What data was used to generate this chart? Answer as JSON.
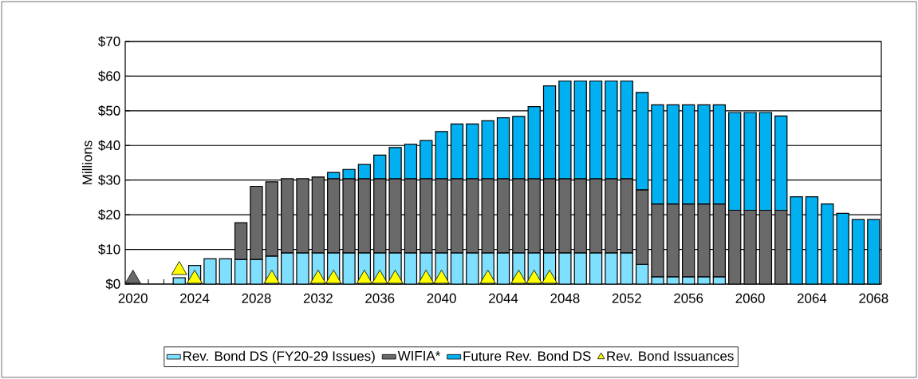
{
  "chart_data": {
    "type": "bar",
    "stacked": true,
    "ylabel": "Millions",
    "categories": [
      "2020",
      null,
      null,
      null,
      "2024",
      null,
      null,
      null,
      "2028",
      null,
      null,
      null,
      "2032",
      null,
      null,
      null,
      "2036",
      null,
      null,
      null,
      "2040",
      null,
      null,
      null,
      "2044",
      null,
      null,
      null,
      "2048",
      null,
      null,
      null,
      "2052",
      null,
      null,
      null,
      "2056",
      null,
      null,
      null,
      "2060",
      null,
      null,
      null,
      "2064",
      null,
      null,
      null,
      "2068"
    ],
    "ylim": [
      0,
      70
    ],
    "yticks": [
      {
        "value": 0,
        "label": "$0"
      },
      {
        "value": 10,
        "label": "$10"
      },
      {
        "value": 20,
        "label": "$20"
      },
      {
        "value": 30,
        "label": "$30"
      },
      {
        "value": 40,
        "label": "$40"
      },
      {
        "value": 50,
        "label": "$50"
      },
      {
        "value": 60,
        "label": "$60"
      },
      {
        "value": 70,
        "label": "$70"
      }
    ],
    "grid": "y",
    "legend": "bottom",
    "marker": "triangle",
    "series": [
      {
        "name": "Rev. Bond DS (FY20-29 Issues)",
        "color": "#7fdfff",
        "values": [
          null,
          null,
          null,
          1.8,
          5.4,
          7.3,
          7.3,
          7.1,
          7.1,
          8.1,
          9.0,
          9.0,
          9.0,
          9.0,
          9.0,
          9.0,
          9.0,
          9.0,
          9.0,
          9.0,
          9.0,
          9.0,
          9.0,
          9.0,
          9.0,
          9.0,
          9.0,
          9.0,
          9.0,
          9.0,
          9.0,
          9.0,
          9.0,
          5.7,
          2.1,
          2.1,
          2.1,
          2.1,
          2.1,
          null,
          null,
          null,
          null,
          null,
          null,
          null,
          null,
          null,
          null
        ]
      },
      {
        "name": "WIFIA*",
        "color": "#696969",
        "values": [
          null,
          null,
          null,
          null,
          null,
          null,
          null,
          10.6,
          21.1,
          21.4,
          21.4,
          21.4,
          21.9,
          21.4,
          21.4,
          21.4,
          21.4,
          21.4,
          21.4,
          21.4,
          21.4,
          21.4,
          21.4,
          21.4,
          21.4,
          21.4,
          21.4,
          21.4,
          21.4,
          21.4,
          21.4,
          21.4,
          21.4,
          21.5,
          21.0,
          21.0,
          21.0,
          21.0,
          21.0,
          21.3,
          21.3,
          21.3,
          21.3,
          null,
          null,
          null,
          null,
          null,
          null
        ]
      },
      {
        "name": "Future Rev. Bond DS",
        "color": "#00b0f0",
        "values": [
          null,
          null,
          null,
          null,
          null,
          null,
          null,
          null,
          null,
          null,
          null,
          null,
          null,
          1.8,
          2.7,
          4.1,
          6.8,
          9.0,
          9.9,
          11.0,
          13.6,
          15.8,
          15.8,
          16.7,
          17.6,
          18.0,
          20.8,
          26.8,
          28.2,
          28.2,
          28.2,
          28.2,
          28.2,
          28.1,
          28.6,
          28.6,
          28.6,
          28.6,
          28.6,
          28.2,
          28.2,
          28.2,
          27.2,
          25.2,
          25.2,
          23.1,
          20.4,
          18.6,
          18.6
        ]
      },
      {
        "name": "Rev. Bond Issuances",
        "type": "scatter",
        "color": "#ffff00",
        "values": [
          null,
          null,
          null,
          4.0,
          1.5,
          null,
          null,
          null,
          null,
          1.5,
          null,
          null,
          1.5,
          1.5,
          null,
          1.5,
          1.5,
          1.5,
          null,
          1.5,
          1.5,
          null,
          null,
          1.5,
          null,
          1.5,
          1.5,
          1.5,
          null,
          null,
          null,
          null,
          null,
          null,
          null,
          null,
          null,
          null,
          null,
          null,
          null,
          null,
          null,
          null,
          null,
          null,
          null,
          null,
          null
        ]
      },
      {
        "type": "scatter",
        "color": "#696969",
        "values": [
          1.5,
          null,
          null,
          null,
          null,
          null,
          null,
          null,
          null,
          null,
          null,
          null,
          null,
          null,
          null,
          null,
          null,
          null,
          null,
          null,
          null,
          null,
          null,
          null,
          null,
          null,
          null,
          null,
          null,
          null,
          null,
          null,
          null,
          null,
          null,
          null,
          null,
          null,
          null,
          null,
          null,
          null,
          null,
          null,
          null,
          null,
          null,
          null,
          null
        ]
      }
    ]
  }
}
